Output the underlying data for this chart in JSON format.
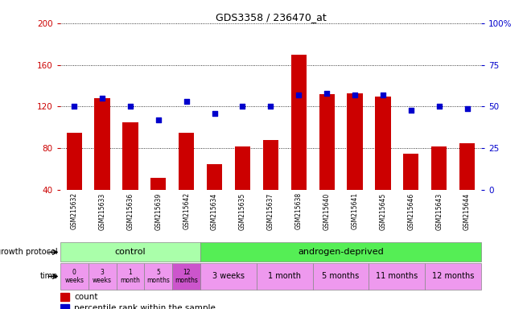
{
  "title": "GDS3358 / 236470_at",
  "samples": [
    "GSM215632",
    "GSM215633",
    "GSM215636",
    "GSM215639",
    "GSM215642",
    "GSM215634",
    "GSM215635",
    "GSM215637",
    "GSM215638",
    "GSM215640",
    "GSM215641",
    "GSM215645",
    "GSM215646",
    "GSM215643",
    "GSM215644"
  ],
  "counts": [
    95,
    128,
    105,
    52,
    95,
    65,
    82,
    88,
    170,
    132,
    133,
    130,
    75,
    82,
    85
  ],
  "percentiles": [
    50,
    55,
    50,
    42,
    53,
    46,
    50,
    50,
    57,
    58,
    57,
    57,
    48,
    50,
    49
  ],
  "bar_color": "#cc0000",
  "dot_color": "#0000cc",
  "ylim_left": [
    40,
    200
  ],
  "ylim_right": [
    0,
    100
  ],
  "yticks_left": [
    40,
    80,
    120,
    160,
    200
  ],
  "yticks_right": [
    0,
    25,
    50,
    75,
    100
  ],
  "left_tick_color": "#cc0000",
  "right_tick_color": "#0000cc",
  "control_color": "#aaffaa",
  "androgen_color": "#55ee55",
  "time_color_single": "#ee99ee",
  "time_color_12months_control": "#cc55cc",
  "protocol_label": "growth protocol",
  "time_label": "time",
  "legend_count": "count",
  "legend_percentile": "percentile rank within the sample",
  "background_color": "#ffffff",
  "xlabels_bg_color": "#cccccc",
  "groups": [
    {
      "label": "control",
      "start": 0,
      "end": 5
    },
    {
      "label": "androgen-deprived",
      "start": 5,
      "end": 15
    }
  ],
  "time_groups_control": [
    {
      "label": "0\nweeks",
      "start": 0,
      "end": 1
    },
    {
      "label": "3\nweeks",
      "start": 1,
      "end": 2
    },
    {
      "label": "1\nmonth",
      "start": 2,
      "end": 3
    },
    {
      "label": "5\nmonths",
      "start": 3,
      "end": 4
    },
    {
      "label": "12\nmonths",
      "start": 4,
      "end": 5
    }
  ],
  "time_groups_androgen": [
    {
      "label": "3 weeks",
      "start": 5,
      "end": 7
    },
    {
      "label": "1 month",
      "start": 7,
      "end": 9
    },
    {
      "label": "5 months",
      "start": 9,
      "end": 11
    },
    {
      "label": "11 months",
      "start": 11,
      "end": 13
    },
    {
      "label": "12 months",
      "start": 13,
      "end": 15
    }
  ]
}
